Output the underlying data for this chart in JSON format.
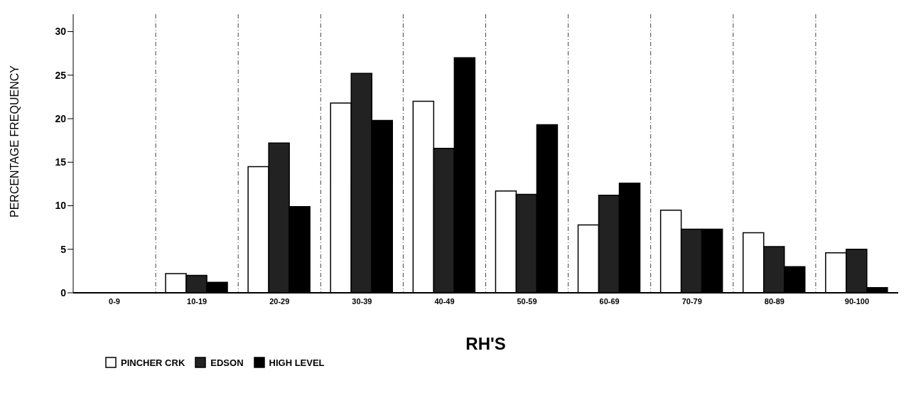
{
  "chart_data": {
    "type": "bar",
    "xlabel": "RH'S",
    "ylabel": "PERCENTAGE FREQUENCY",
    "categories": [
      "0-9",
      "10-19",
      "20-29",
      "30-39",
      "40-49",
      "50-59",
      "60-69",
      "70-79",
      "80-89",
      "90-100"
    ],
    "series": [
      {
        "name": "PINCHER CRK",
        "color": "#ffffff",
        "values": [
          0,
          2.2,
          14.5,
          21.8,
          22,
          11.7,
          7.8,
          9.5,
          6.9,
          4.6
        ]
      },
      {
        "name": "EDSON",
        "color": "#222222",
        "values": [
          0,
          2.0,
          17.2,
          25.2,
          16.6,
          11.3,
          11.2,
          7.3,
          5.3,
          5.0
        ]
      },
      {
        "name": "HIGH LEVEL",
        "color": "#000000",
        "values": [
          0,
          1.2,
          9.9,
          19.8,
          27.0,
          19.3,
          12.6,
          7.3,
          3.0,
          0.6
        ]
      }
    ],
    "ylim": [
      0,
      32
    ],
    "yticks": [
      0,
      5,
      10,
      15,
      20,
      25,
      30
    ],
    "grid": "x",
    "legend": "bottom left"
  }
}
